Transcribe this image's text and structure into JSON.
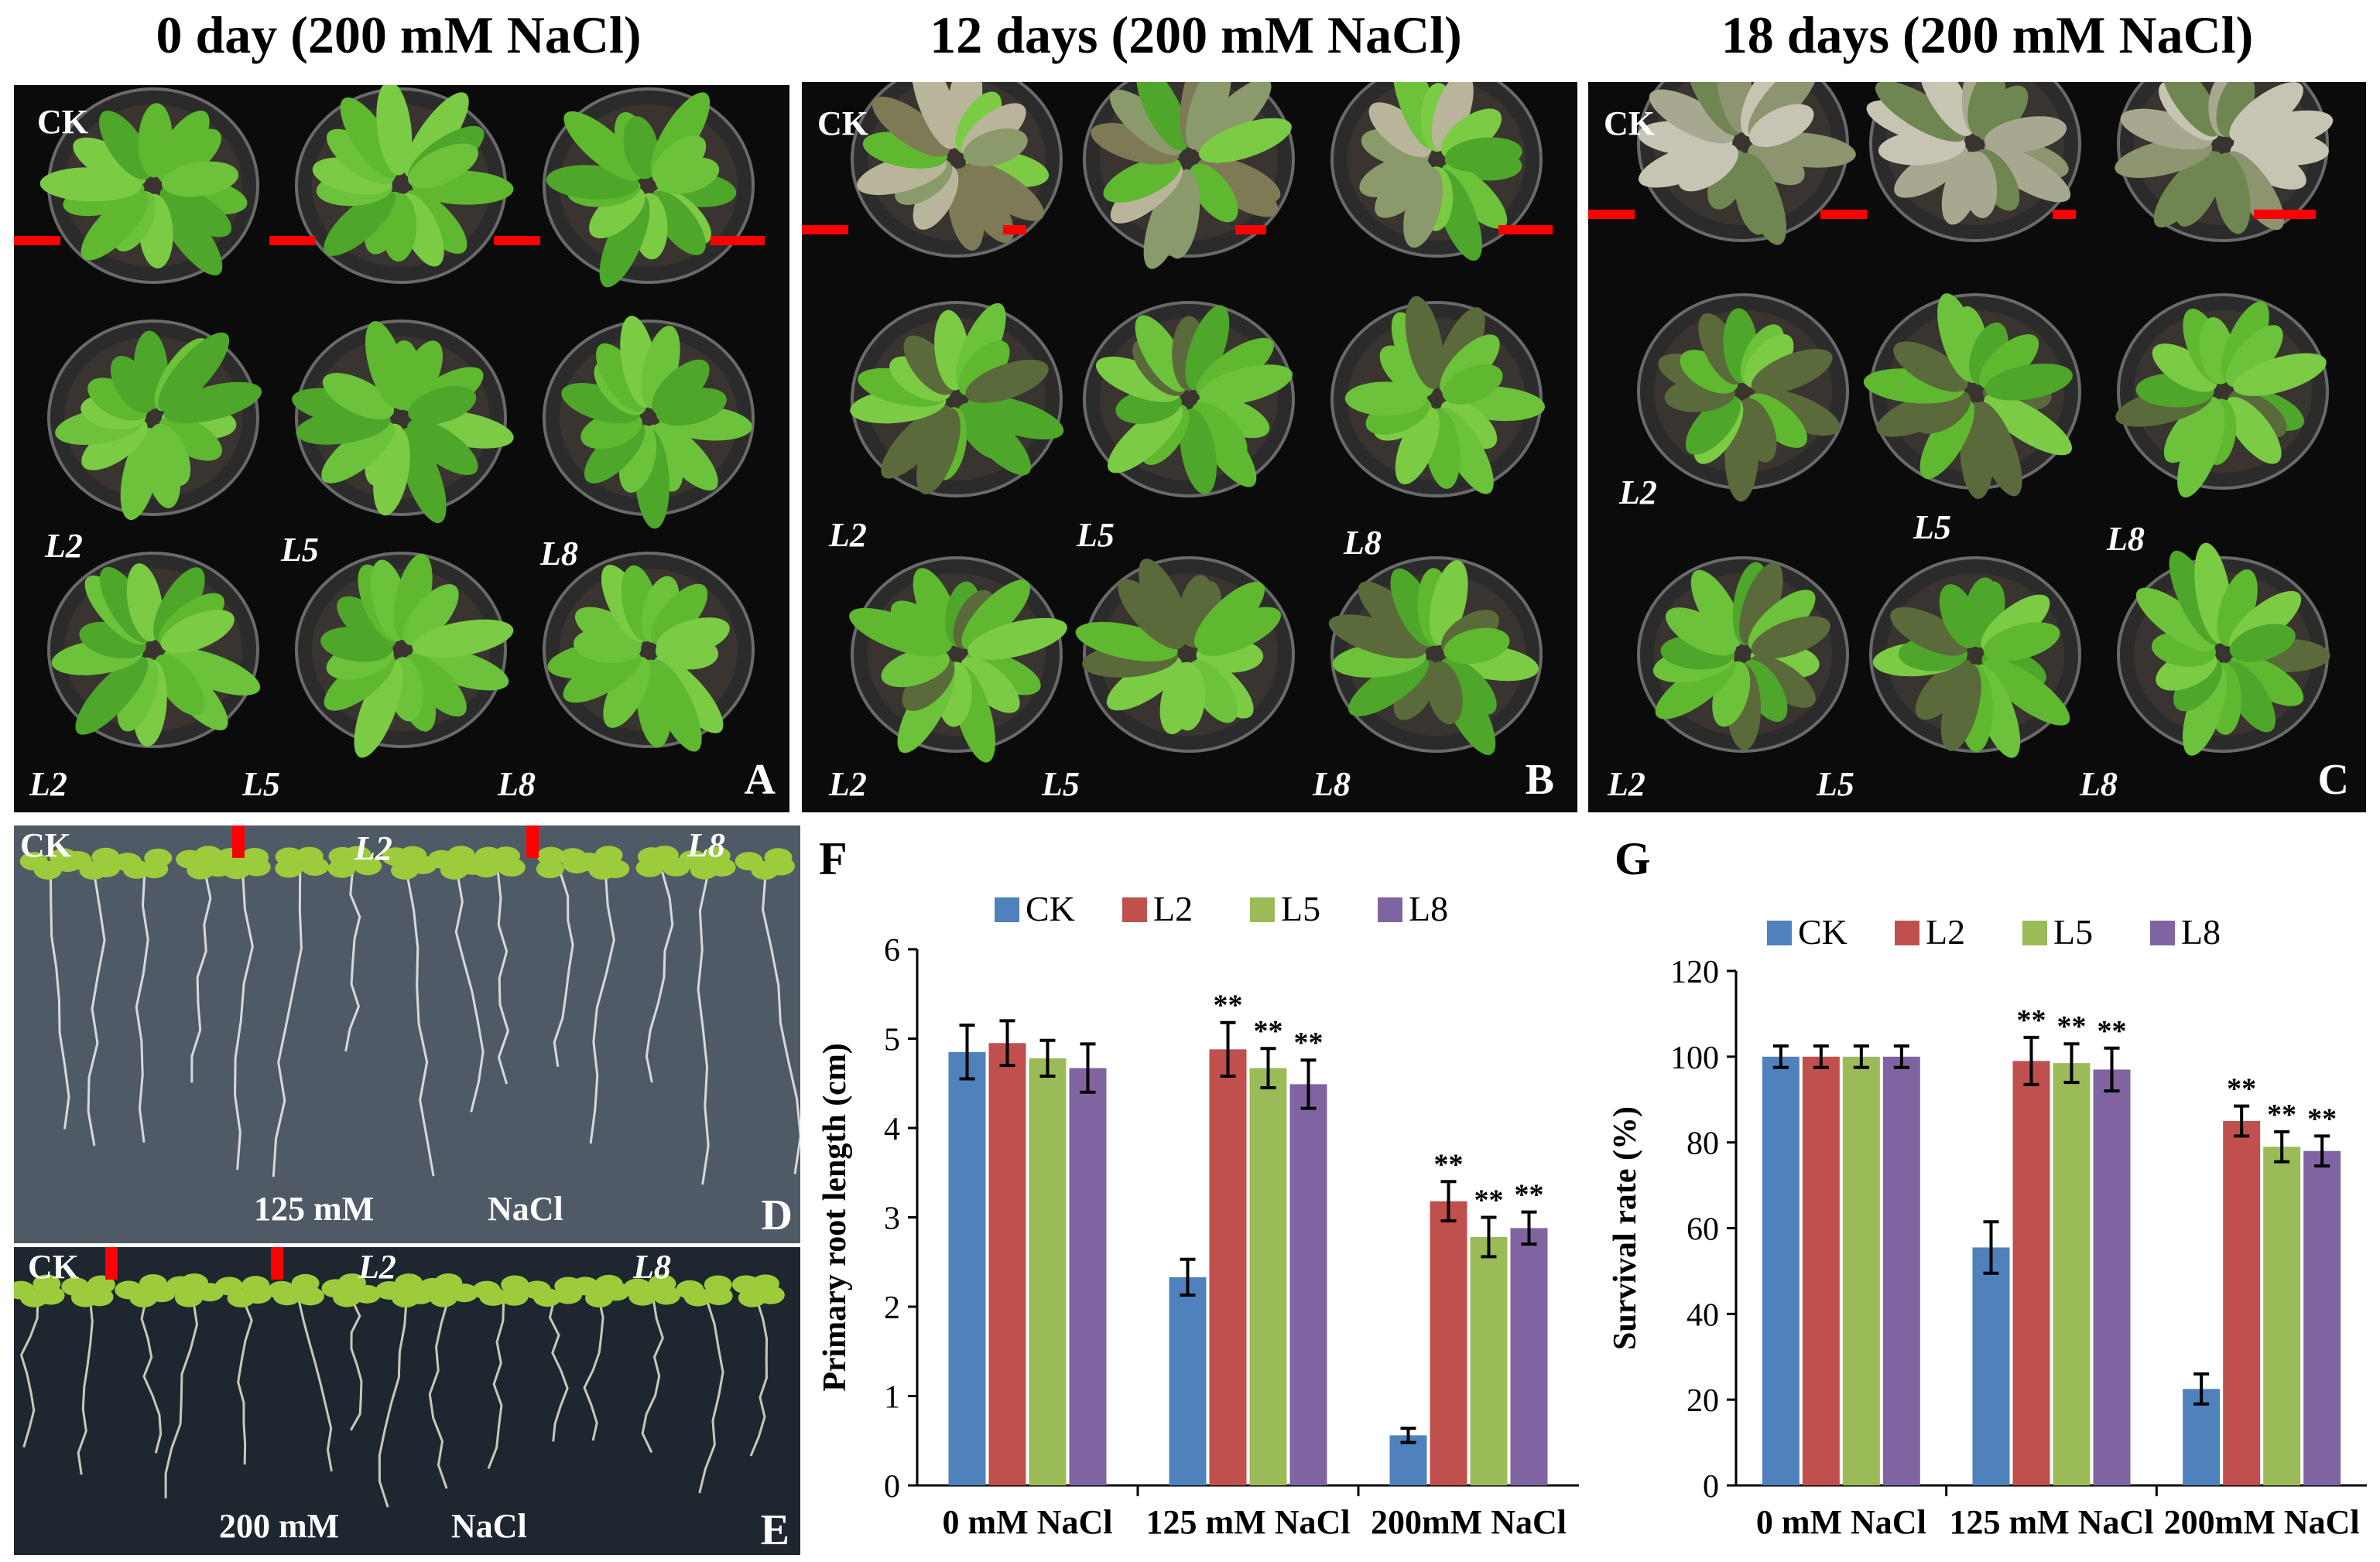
{
  "titles": [
    "0 day (200 mM NaCl)",
    "12 days (200 mM NaCl)",
    "18 days (200 mM NaCl)"
  ],
  "panels": {
    "A": {
      "letter": "A",
      "ck": "CK",
      "row2": [
        "L2",
        "L5",
        "L8"
      ],
      "row3": [
        "L2",
        "L5",
        "L8"
      ]
    },
    "B": {
      "letter": "B",
      "ck": "CK",
      "row2": [
        "L2",
        "L5",
        "L8"
      ],
      "row3": [
        "L2",
        "L5",
        "L8"
      ]
    },
    "C": {
      "letter": "C",
      "ck": "CK",
      "row2": [
        "L2",
        "L5",
        "L8"
      ],
      "row3": [
        "L2",
        "L5",
        "L8"
      ]
    },
    "D": {
      "letter": "D",
      "labels": [
        "CK",
        "L2",
        "L8"
      ],
      "caption_conc": "125 mM",
      "caption_salt": "NaCl"
    },
    "E": {
      "letter": "E",
      "labels": [
        "CK",
        "L2",
        "L8"
      ],
      "caption_conc": "200 mM",
      "caption_salt": "NaCl"
    }
  },
  "colors": {
    "CK": "#4f81bd",
    "L2": "#c0504d",
    "L5": "#9bbb59",
    "L8": "#8064a2",
    "marker": "#ff0000"
  },
  "chart_data": [
    {
      "panel": "F",
      "type": "bar",
      "categories": [
        "0 mM NaCl",
        "125 mM NaCl",
        "200mM NaCl"
      ],
      "ylabel": "Primary root length (cm)",
      "ylim": [
        0,
        6
      ],
      "yticks": [
        "0",
        "1",
        "2",
        "3",
        "4",
        "5",
        "6"
      ],
      "legend": "top",
      "series": [
        {
          "name": "CK",
          "values": [
            4.85,
            2.33,
            0.56
          ],
          "errors": [
            0.3,
            0.2,
            0.08
          ],
          "sig": [
            "",
            "",
            ""
          ]
        },
        {
          "name": "L2",
          "values": [
            4.95,
            4.88,
            3.18
          ],
          "errors": [
            0.25,
            0.3,
            0.22
          ],
          "sig": [
            "",
            "**",
            "**"
          ]
        },
        {
          "name": "L5",
          "values": [
            4.78,
            4.67,
            2.78
          ],
          "errors": [
            0.2,
            0.22,
            0.22
          ],
          "sig": [
            "",
            "**",
            "**"
          ]
        },
        {
          "name": "L8",
          "values": [
            4.67,
            4.49,
            2.88
          ],
          "errors": [
            0.27,
            0.27,
            0.18
          ],
          "sig": [
            "",
            "**",
            "**"
          ]
        }
      ]
    },
    {
      "panel": "G",
      "type": "bar",
      "categories": [
        "0 mM NaCl",
        "125 mM NaCl",
        "200mM NaCl"
      ],
      "ylabel": "Survival rate (%)",
      "ylim": [
        0,
        120
      ],
      "yticks": [
        "0",
        "20",
        "40",
        "60",
        "80",
        "100",
        "120"
      ],
      "legend": "top",
      "series": [
        {
          "name": "CK",
          "values": [
            100,
            55.5,
            22.5
          ],
          "errors": [
            2.5,
            6,
            3.5
          ],
          "sig": [
            "",
            "",
            ""
          ]
        },
        {
          "name": "L2",
          "values": [
            100,
            99,
            85
          ],
          "errors": [
            2.5,
            5.5,
            3.5
          ],
          "sig": [
            "",
            "**",
            "**"
          ]
        },
        {
          "name": "L5",
          "values": [
            100,
            98.5,
            79
          ],
          "errors": [
            2.5,
            4.5,
            3.5
          ],
          "sig": [
            "",
            "**",
            "**"
          ]
        },
        {
          "name": "L8",
          "values": [
            100,
            97,
            78
          ],
          "errors": [
            2.5,
            5,
            3.5
          ],
          "sig": [
            "",
            "**",
            "**"
          ]
        }
      ]
    }
  ]
}
